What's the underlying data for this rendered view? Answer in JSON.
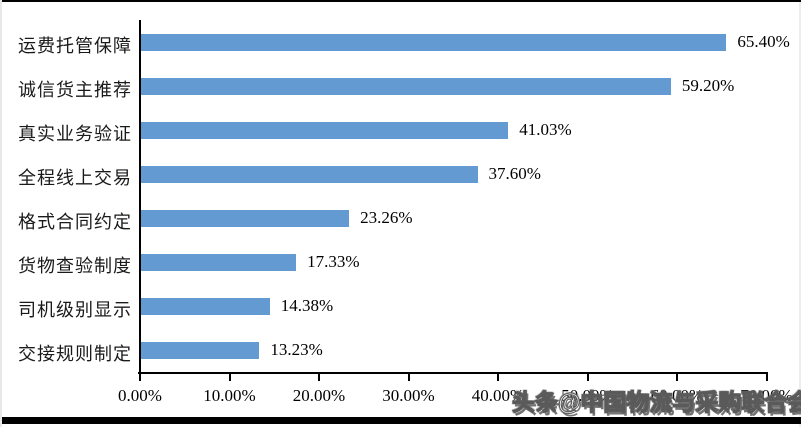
{
  "chart_data": {
    "type": "bar",
    "orientation": "horizontal",
    "title": "",
    "xlabel": "",
    "ylabel": "",
    "categories": [
      "运费托管保障",
      "诚信货主推荐",
      "真实业务验证",
      "全程线上交易",
      "格式合同约定",
      "货物查验制度",
      "司机级别显示",
      "交接规则制定"
    ],
    "values": [
      65.4,
      59.2,
      41.03,
      37.6,
      23.26,
      17.33,
      14.38,
      13.23
    ],
    "value_labels": [
      "65.40%",
      "59.20%",
      "41.03%",
      "37.60%",
      "23.26%",
      "17.33%",
      "14.38%",
      "13.23%"
    ],
    "x_tick_values": [
      0,
      10,
      20,
      30,
      40,
      50,
      60,
      70
    ],
    "x_tick_labels": [
      "0.00%",
      "10.00%",
      "20.00%",
      "30.00%",
      "40.00%",
      "50.00%",
      "60.00%",
      "70.00%"
    ],
    "xlim": [
      0,
      70
    ],
    "grid": false,
    "legend": null,
    "bar_color": "#639AD2",
    "axis_color": "#000000"
  },
  "watermark": {
    "text": "头条@中国物流与采购联合会"
  }
}
